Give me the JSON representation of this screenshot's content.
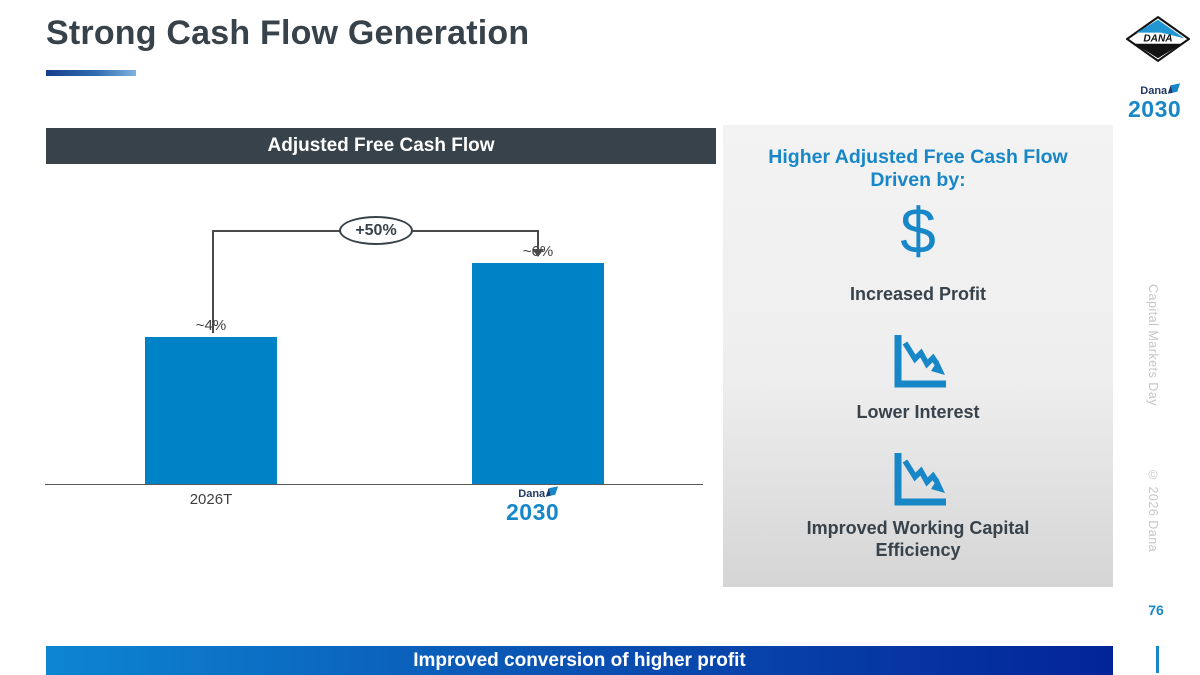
{
  "slide": {
    "title": "Strong Cash Flow Generation",
    "page_number": "76",
    "footer_banner": "Improved conversion of higher profit",
    "side_text_top": "Capital Markets Day",
    "side_text_bottom": "© 2026 Dana"
  },
  "logos": {
    "dana_wordmark": "DANA",
    "dana_2030": {
      "dana": "Dana",
      "year": "2030"
    }
  },
  "chart": {
    "header": "Adjusted Free Cash Flow",
    "growth_callout": "+50%",
    "bars": [
      {
        "label": "2026T",
        "value_label": "~4%"
      },
      {
        "label": "Dana 2030 (logo)",
        "value_label": "~6%"
      }
    ]
  },
  "chart_data": {
    "type": "bar",
    "title": "Adjusted Free Cash Flow",
    "categories": [
      "2026T",
      "Dana 2030"
    ],
    "values": [
      4,
      6
    ],
    "value_labels": [
      "~4%",
      "~6%"
    ],
    "annotation": "+50%",
    "xlabel": "",
    "ylabel": "",
    "ylim": [
      0,
      7
    ],
    "grid": false,
    "legend": "none",
    "bar_color": "#0082C6"
  },
  "drivers_panel": {
    "heading": "Higher Adjusted Free Cash Flow Driven by:",
    "items": [
      {
        "icon": "dollar-icon",
        "label": "Increased Profit"
      },
      {
        "icon": "declining-chart-icon",
        "label": "Lower Interest"
      },
      {
        "icon": "declining-chart-icon",
        "label": "Improved Working Capital Efficiency"
      }
    ],
    "dollar_glyph": "$"
  },
  "colors": {
    "accent_blue": "#1787c8",
    "bar_blue": "#0082C6",
    "dark_slate": "#37424A",
    "footer_gradient_start": "#0d85d1",
    "footer_gradient_end": "#032499",
    "navy": "#1f3864"
  }
}
